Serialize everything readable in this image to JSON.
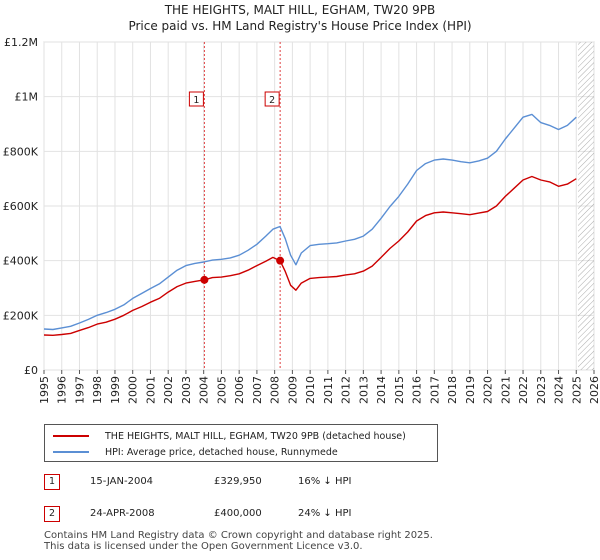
{
  "chart_data": {
    "type": "line",
    "title": "THE HEIGHTS, MALT HILL, EGHAM, TW20 9PB",
    "subtitle": "Price paid vs. HM Land Registry's House Price Index (HPI)",
    "xlabel": "",
    "ylabel": "",
    "xlim": [
      1995,
      2026
    ],
    "ylim": [
      0,
      1200000
    ],
    "x_ticks": [
      "1995",
      "1996",
      "1997",
      "1998",
      "1999",
      "2000",
      "2001",
      "2002",
      "2003",
      "2004",
      "2005",
      "2006",
      "2007",
      "2008",
      "2009",
      "2010",
      "2011",
      "2012",
      "2013",
      "2014",
      "2015",
      "2016",
      "2017",
      "2018",
      "2019",
      "2020",
      "2021",
      "2022",
      "2023",
      "2024",
      "2025",
      "2026"
    ],
    "y_ticks": [
      {
        "value": 0,
        "label": "£0"
      },
      {
        "value": 200000,
        "label": "£200K"
      },
      {
        "value": 400000,
        "label": "£400K"
      },
      {
        "value": 600000,
        "label": "£600K"
      },
      {
        "value": 800000,
        "label": "£800K"
      },
      {
        "value": 1000000,
        "label": "£1M"
      },
      {
        "value": 1200000,
        "label": "£1.2M"
      }
    ],
    "grid": true,
    "future_hatch_from": 2025.1,
    "series": [
      {
        "name": "THE HEIGHTS, MALT HILL, EGHAM, TW20 9PB (detached house)",
        "color": "#cc0000",
        "x": [
          1995.0,
          1995.5,
          1996.0,
          1996.5,
          1997.0,
          1997.5,
          1998.0,
          1998.5,
          1999.0,
          1999.5,
          2000.0,
          2000.5,
          2001.0,
          2001.5,
          2002.0,
          2002.5,
          2003.0,
          2003.5,
          2004.04,
          2004.5,
          2005.0,
          2005.5,
          2006.0,
          2006.5,
          2007.0,
          2007.5,
          2007.9,
          2008.31,
          2008.6,
          2008.9,
          2009.2,
          2009.5,
          2010.0,
          2010.5,
          2011.0,
          2011.5,
          2012.0,
          2012.5,
          2013.0,
          2013.5,
          2014.0,
          2014.5,
          2015.0,
          2015.5,
          2016.0,
          2016.5,
          2017.0,
          2017.5,
          2018.0,
          2018.5,
          2019.0,
          2019.5,
          2020.0,
          2020.5,
          2021.0,
          2021.5,
          2022.0,
          2022.5,
          2023.0,
          2023.5,
          2024.0,
          2024.5,
          2025.0
        ],
        "values": [
          128000,
          127000,
          130000,
          134000,
          145000,
          155000,
          168000,
          175000,
          186000,
          200000,
          218000,
          232000,
          248000,
          262000,
          285000,
          305000,
          318000,
          324000,
          329950,
          338000,
          340000,
          345000,
          352000,
          365000,
          382000,
          398000,
          412000,
          400000,
          360000,
          310000,
          292000,
          318000,
          335000,
          338000,
          340000,
          342000,
          348000,
          352000,
          362000,
          380000,
          412000,
          445000,
          472000,
          505000,
          545000,
          565000,
          575000,
          578000,
          575000,
          572000,
          568000,
          574000,
          580000,
          600000,
          635000,
          665000,
          695000,
          708000,
          695000,
          688000,
          672000,
          680000,
          700000
        ]
      },
      {
        "name": "HPI: Average price, detached house, Runnymede",
        "color": "#5b8fd4",
        "x": [
          1995.0,
          1995.5,
          1996.0,
          1996.5,
          1997.0,
          1997.5,
          1998.0,
          1998.5,
          1999.0,
          1999.5,
          2000.0,
          2000.5,
          2001.0,
          2001.5,
          2002.0,
          2002.5,
          2003.0,
          2003.5,
          2004.0,
          2004.5,
          2005.0,
          2005.5,
          2006.0,
          2006.5,
          2007.0,
          2007.5,
          2007.9,
          2008.3,
          2008.6,
          2008.9,
          2009.2,
          2009.5,
          2010.0,
          2010.5,
          2011.0,
          2011.5,
          2012.0,
          2012.5,
          2013.0,
          2013.5,
          2014.0,
          2014.5,
          2015.0,
          2015.5,
          2016.0,
          2016.5,
          2017.0,
          2017.5,
          2018.0,
          2018.5,
          2019.0,
          2019.5,
          2020.0,
          2020.5,
          2021.0,
          2021.5,
          2022.0,
          2022.5,
          2023.0,
          2023.5,
          2024.0,
          2024.5,
          2025.0
        ],
        "values": [
          150000,
          148000,
          154000,
          160000,
          172000,
          185000,
          200000,
          210000,
          222000,
          238000,
          262000,
          280000,
          298000,
          315000,
          340000,
          365000,
          382000,
          390000,
          395000,
          402000,
          405000,
          410000,
          420000,
          438000,
          460000,
          490000,
          515000,
          525000,
          480000,
          420000,
          385000,
          428000,
          455000,
          460000,
          462000,
          465000,
          472000,
          478000,
          490000,
          515000,
          555000,
          598000,
          635000,
          680000,
          730000,
          755000,
          768000,
          772000,
          768000,
          762000,
          758000,
          765000,
          775000,
          800000,
          845000,
          885000,
          925000,
          935000,
          905000,
          895000,
          880000,
          895000,
          925000
        ]
      }
    ],
    "sales": [
      {
        "num": "1",
        "date": "15-JAN-2004",
        "year": 2004.04,
        "price": 329950,
        "price_label": "£329,950",
        "hpi": "16% ↓ HPI"
      },
      {
        "num": "2",
        "date": "24-APR-2008",
        "year": 2008.31,
        "price": 400000,
        "price_label": "£400,000",
        "hpi": "24% ↓ HPI"
      }
    ]
  },
  "footer": {
    "line1": "Contains HM Land Registry data © Crown copyright and database right 2025.",
    "line2": "This data is licensed under the Open Government Licence v3.0."
  }
}
